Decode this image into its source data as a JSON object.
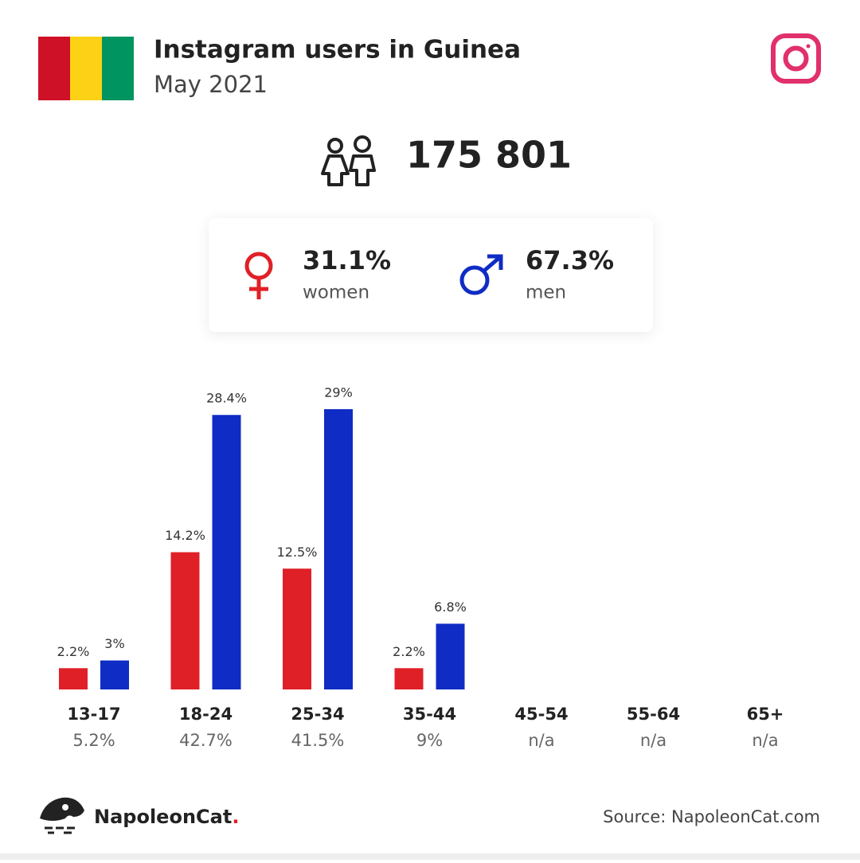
{
  "header": {
    "title": "Instagram users in Guinea",
    "subtitle": "May 2021",
    "total": "175 801"
  },
  "chart_data": {
    "type": "bar",
    "categories": [
      "13-17",
      "18-24",
      "25-34",
      "35-44",
      "45-54",
      "55-64",
      "65+"
    ],
    "totals": [
      5.2,
      42.7,
      41.5,
      9,
      null,
      null,
      null
    ],
    "total_labels": [
      "5.2%",
      "42.7%",
      "41.5%",
      "9%",
      "n/a",
      "n/a",
      "n/a"
    ],
    "series": [
      {
        "name": "women",
        "share_label": "31.1%",
        "color": "#e02027",
        "values": [
          2.2,
          14.2,
          12.5,
          2.2,
          null,
          null,
          null
        ],
        "value_labels": [
          "2.2%",
          "14.2%",
          "12.5%",
          "2.2%",
          null,
          null,
          null
        ]
      },
      {
        "name": "men",
        "share_label": "67.3%",
        "color": "#0f2cc4",
        "values": [
          3,
          28.4,
          29,
          6.8,
          null,
          null,
          null
        ],
        "value_labels": [
          "3%",
          "28.4%",
          "29%",
          "6.8%",
          null,
          null,
          null
        ]
      }
    ]
  },
  "footer": {
    "brand": "NapoleonCat",
    "brand_dot": ".",
    "source": "Source: NapoleonCat.com"
  }
}
